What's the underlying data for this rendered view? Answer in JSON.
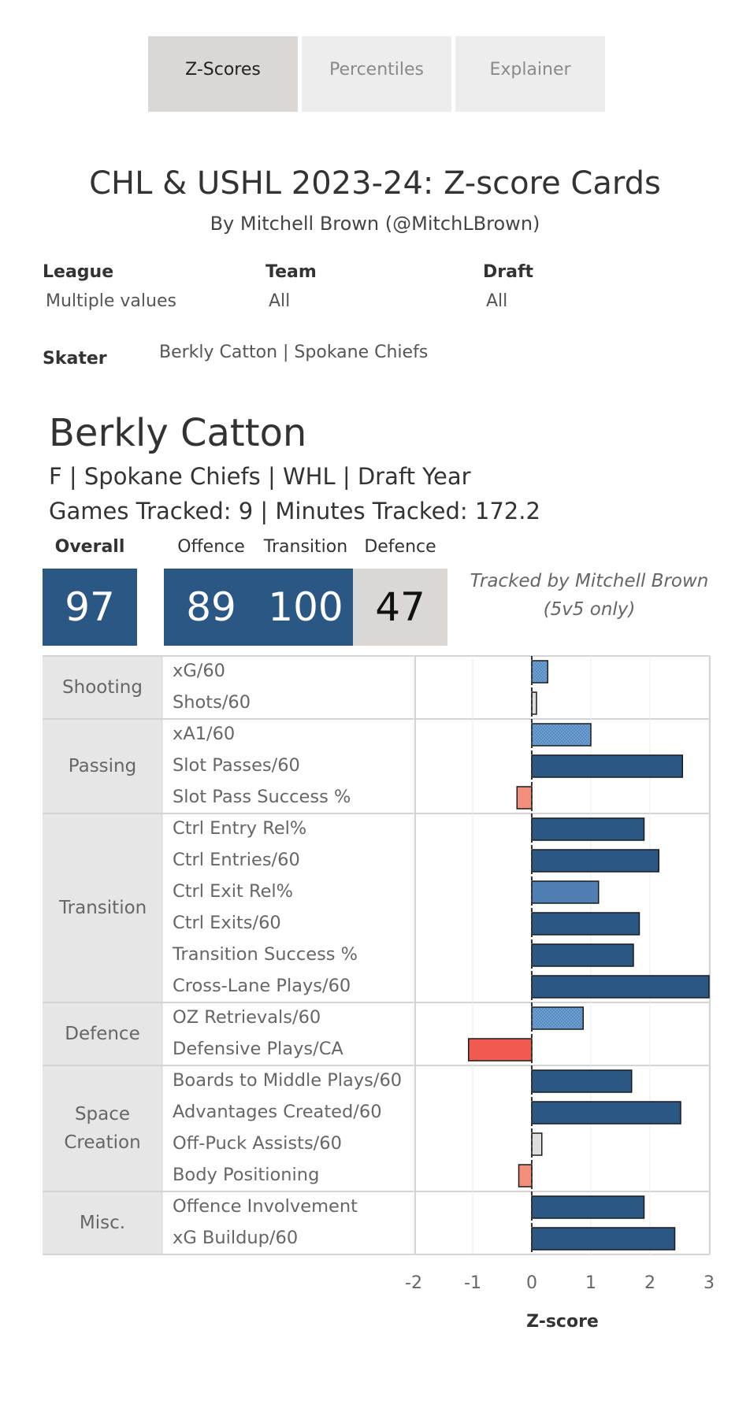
{
  "tabs": [
    {
      "label": "Z-Scores",
      "active": true
    },
    {
      "label": "Percentiles",
      "active": false
    },
    {
      "label": "Explainer",
      "active": false
    }
  ],
  "title": "CHL & USHL 2023-24: Z-score Cards",
  "subtitle": "By Mitchell Brown (@MitchLBrown)",
  "filters": {
    "league": {
      "label": "League",
      "value": "Multiple values"
    },
    "team": {
      "label": "Team",
      "value": "All"
    },
    "draft": {
      "label": "Draft",
      "value": "All"
    },
    "skater": {
      "label": "Skater",
      "value": "Berkly Catton | Spokane Chiefs"
    }
  },
  "player": {
    "name": "Berkly Catton",
    "details": "F | Spokane Chiefs | WHL | Draft Year",
    "tracking": "Games Tracked: 9 | Minutes Tracked: 172.2"
  },
  "scores": {
    "overall": {
      "label": "Overall",
      "value": "97"
    },
    "offence": {
      "label": "Offence",
      "value": "89"
    },
    "transition": {
      "label": "Transition",
      "value": "100"
    },
    "defence": {
      "label": "Defence",
      "value": "47"
    }
  },
  "tracked_note": {
    "line1": "Tracked by Mitchell Brown",
    "line2": "(5v5 only)"
  },
  "colors": {
    "strong_positive": "#2b5785",
    "positive": "#4f7fb3",
    "mild_positive": "#6d9fd4",
    "neutral": "#dedede",
    "mild_negative": "#f3907c",
    "negative": "#ef5b50",
    "bar_border": "#1c1c1c"
  },
  "chart_data": {
    "type": "bar",
    "orientation": "horizontal",
    "xlabel": "Z-score",
    "xlim": [
      -2,
      3
    ],
    "xticks": [
      "-2",
      "-1",
      "0",
      "1",
      "2",
      "3"
    ],
    "grid": true,
    "groups": [
      {
        "name": "Shooting",
        "metrics": [
          {
            "label": "xG/60",
            "value": 0.27,
            "color": "mild_positive",
            "dotted": true
          },
          {
            "label": "Shots/60",
            "value": 0.08,
            "color": "neutral"
          }
        ]
      },
      {
        "name": "Passing",
        "metrics": [
          {
            "label": "xA1/60",
            "value": 1.0,
            "color": "mild_positive",
            "dotted": true
          },
          {
            "label": "Slot Passes/60",
            "value": 2.55,
            "color": "strong_positive"
          },
          {
            "label": "Slot Pass Success %",
            "value": -0.25,
            "color": "mild_negative"
          }
        ]
      },
      {
        "name": "Transition",
        "metrics": [
          {
            "label": "Ctrl Entry Rel%",
            "value": 1.9,
            "color": "strong_positive"
          },
          {
            "label": "Ctrl Entries/60",
            "value": 2.15,
            "color": "strong_positive"
          },
          {
            "label": "Ctrl Exit Rel%",
            "value": 1.13,
            "color": "positive"
          },
          {
            "label": "Ctrl Exits/60",
            "value": 1.82,
            "color": "strong_positive"
          },
          {
            "label": "Transition Success %",
            "value": 1.72,
            "color": "strong_positive"
          },
          {
            "label": "Cross-Lane Plays/60",
            "value": 3.0,
            "color": "strong_positive"
          }
        ]
      },
      {
        "name": "Defence",
        "metrics": [
          {
            "label": "OZ Retrievals/60",
            "value": 0.87,
            "color": "mild_positive",
            "dotted": true
          },
          {
            "label": "Defensive Plays/CA",
            "value": -1.07,
            "color": "negative"
          }
        ]
      },
      {
        "name": "Space Creation",
        "metrics": [
          {
            "label": "Boards to Middle Plays/60",
            "value": 1.69,
            "color": "strong_positive"
          },
          {
            "label": "Advantages Created/60",
            "value": 2.52,
            "color": "strong_positive"
          },
          {
            "label": "Off-Puck Assists/60",
            "value": 0.17,
            "color": "neutral"
          },
          {
            "label": "Body Positioning",
            "value": -0.22,
            "color": "mild_negative"
          }
        ]
      },
      {
        "name": "Misc.",
        "metrics": [
          {
            "label": "Offence Involvement",
            "value": 1.9,
            "color": "strong_positive"
          },
          {
            "label": "xG Buildup/60",
            "value": 2.42,
            "color": "strong_positive"
          }
        ]
      }
    ]
  }
}
